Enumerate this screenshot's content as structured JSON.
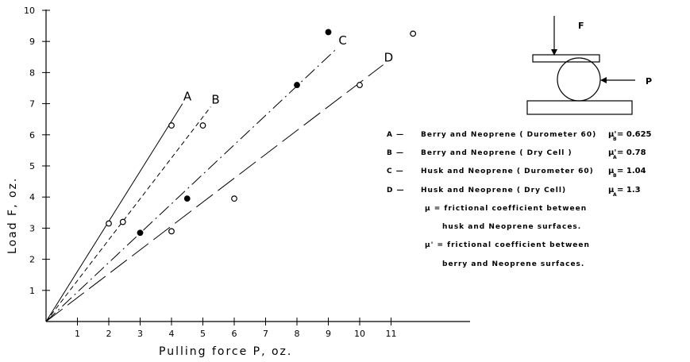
{
  "chart_data": {
    "type": "scatter",
    "title": "",
    "xlabel": "Pulling force P, oz.",
    "ylabel": "Load F, oz.",
    "xlim": [
      0,
      13
    ],
    "ylim": [
      0,
      10
    ],
    "x_ticks": [
      "1",
      "2",
      "3",
      "4",
      "5",
      "6",
      "7",
      "8",
      "9",
      "10",
      "11"
    ],
    "y_ticks": [
      "1",
      "2",
      "3",
      "4",
      "5",
      "6",
      "7",
      "8",
      "9",
      "10"
    ],
    "grid": false,
    "lines": [
      {
        "label": "A",
        "style": "solid",
        "end": [
          4.35,
          7.0
        ]
      },
      {
        "label": "B",
        "style": "short-dash",
        "end": [
          5.25,
          6.9
        ]
      },
      {
        "label": "C",
        "style": "dash-dot",
        "end": [
          9.3,
          8.8
        ]
      },
      {
        "label": "D",
        "style": "long-dash",
        "end": [
          10.75,
          8.25
        ]
      }
    ],
    "points": [
      {
        "x": 2.0,
        "y": 3.15,
        "filled": false
      },
      {
        "x": 4.0,
        "y": 6.3,
        "filled": false
      },
      {
        "x": 2.45,
        "y": 3.2,
        "filled": false
      },
      {
        "x": 5.0,
        "y": 6.3,
        "filled": false
      },
      {
        "x": 3.0,
        "y": 2.85,
        "filled": true
      },
      {
        "x": 4.5,
        "y": 3.95,
        "filled": true
      },
      {
        "x": 8.0,
        "y": 7.6,
        "filled": true
      },
      {
        "x": 9.0,
        "y": 9.3,
        "filled": true
      },
      {
        "x": 4.0,
        "y": 2.9,
        "filled": false
      },
      {
        "x": 6.0,
        "y": 3.95,
        "filled": false
      },
      {
        "x": 10.0,
        "y": 7.6,
        "filled": false
      },
      {
        "x": 11.7,
        "y": 9.25,
        "filled": false
      }
    ],
    "legend": [
      {
        "key": "A —",
        "text": "Berry and Neoprene ( Durometer 60)",
        "coef_symbol": "μ'",
        "coef_sub": "B",
        "coef_value": "= 0.625"
      },
      {
        "key": "B —",
        "text": "Berry and Neoprene ( Dry Cell )",
        "coef_symbol": "μ'",
        "coef_sub": "A",
        "coef_value": "= 0.78"
      },
      {
        "key": "C —",
        "text": "Husk and Neoprene ( Durometer 60)",
        "coef_symbol": "μ",
        "coef_sub": "B",
        "coef_value": "= 1.04"
      },
      {
        "key": "D —",
        "text": "Husk and Neoprene ( Dry Cell)",
        "coef_symbol": "μ",
        "coef_sub": "A",
        "coef_value": "= 1.3"
      }
    ],
    "notes": [
      "μ = frictional  coefficient  between",
      "husk  and  Neoprene  surfaces.",
      "μ' = frictional  coefficient  between",
      "berry  and  Neoprene  surfaces."
    ]
  },
  "diagram": {
    "force_top_label": "F",
    "force_side_label": "P"
  }
}
